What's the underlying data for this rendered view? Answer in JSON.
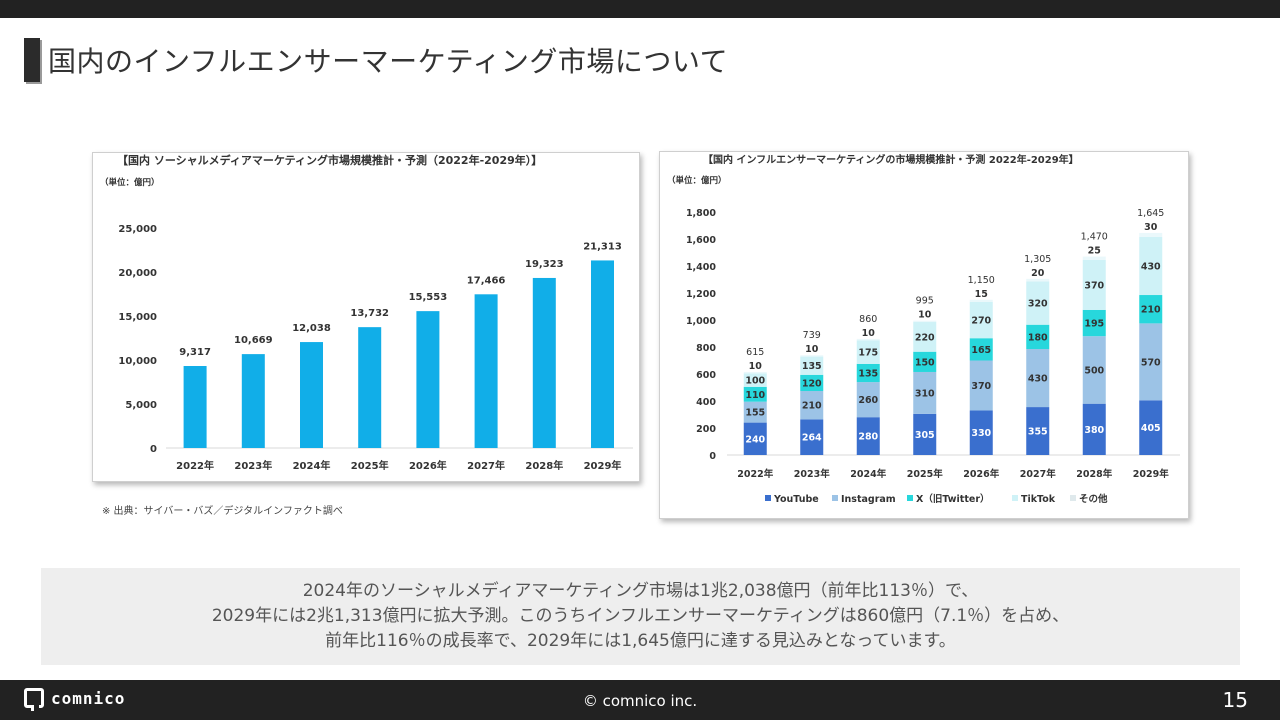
{
  "header": {
    "title": "国内のインフルエンサーマーケティング市場について"
  },
  "colors": {
    "bar1": "#11aee8",
    "youtube": "#3a6fce",
    "instagram": "#9cc3e6",
    "x": "#27d7dc",
    "tiktok": "#cff2f7",
    "other": "#eaf8fb"
  },
  "chart_data": [
    {
      "type": "bar",
      "title": "【国内 ソーシャルメディアマーケティング市場規模推計・予測（2022年-2029年）】",
      "unit": "（単位：億円）",
      "categories": [
        "2022年",
        "2023年",
        "2024年",
        "2025年",
        "2026年",
        "2027年",
        "2028年",
        "2029年"
      ],
      "values": [
        9317,
        10669,
        12038,
        13732,
        15553,
        17466,
        19323,
        21313
      ],
      "value_labels": [
        "9,317",
        "10,669",
        "12,038",
        "13,732",
        "15,553",
        "17,466",
        "19,323",
        "21,313"
      ],
      "ylim": [
        0,
        25000
      ],
      "yticks": [
        0,
        5000,
        10000,
        15000,
        20000,
        25000
      ],
      "ytick_labels": [
        "0",
        "5,000",
        "10,000",
        "15,000",
        "20,000",
        "25,000"
      ]
    },
    {
      "type": "bar",
      "stacked": true,
      "title": "【国内 インフルエンサーマーケティングの市場規模推計・予測 2022年-2029年】",
      "unit": "（単位：億円）",
      "categories": [
        "2022年",
        "2023年",
        "2024年",
        "2025年",
        "2026年",
        "2027年",
        "2028年",
        "2029年"
      ],
      "series": [
        {
          "name": "YouTube",
          "values": [
            240,
            264,
            280,
            305,
            330,
            355,
            380,
            405
          ]
        },
        {
          "name": "Instagram",
          "values": [
            155,
            210,
            260,
            310,
            370,
            430,
            500,
            570
          ]
        },
        {
          "name": "X（旧Twitter）",
          "values": [
            110,
            120,
            135,
            150,
            165,
            180,
            195,
            210
          ]
        },
        {
          "name": "TikTok",
          "values": [
            100,
            135,
            175,
            220,
            270,
            320,
            370,
            430
          ]
        },
        {
          "name": "その他",
          "values": [
            10,
            10,
            10,
            10,
            15,
            20,
            25,
            30
          ]
        }
      ],
      "totals": [
        615,
        739,
        860,
        995,
        1150,
        1305,
        1470,
        1645
      ],
      "total_labels": [
        "615",
        "739",
        "860",
        "995",
        "1,150",
        "1,305",
        "1,470",
        "1,645"
      ],
      "ylim": [
        0,
        1800
      ],
      "yticks": [
        0,
        200,
        400,
        600,
        800,
        1000,
        1200,
        1400,
        1600,
        1800
      ],
      "ytick_labels": [
        "0",
        "200",
        "400",
        "600",
        "800",
        "1,000",
        "1,200",
        "1,400",
        "1,600",
        "1,800"
      ],
      "legend": [
        "YouTube",
        "Instagram",
        "X（旧Twitter）",
        "TikTok",
        "その他"
      ]
    }
  ],
  "source": "※ 出典：サイバー・バズ／デジタルインファクト調べ",
  "summary": {
    "line1": "2024年のソーシャルメディアマーケティング市場は1兆2,038億円（前年比113％）で、",
    "line2": "2029年には2兆1,313億円に拡大予測。このうちインフルエンサーマーケティングは860億円（7.1％）を占め、",
    "line3": "前年比116％の成長率で、2029年には1,645億円に達する見込みとなっています。"
  },
  "footer": {
    "logo": "comnico",
    "copyright": "© comnico inc.",
    "page": "15"
  }
}
